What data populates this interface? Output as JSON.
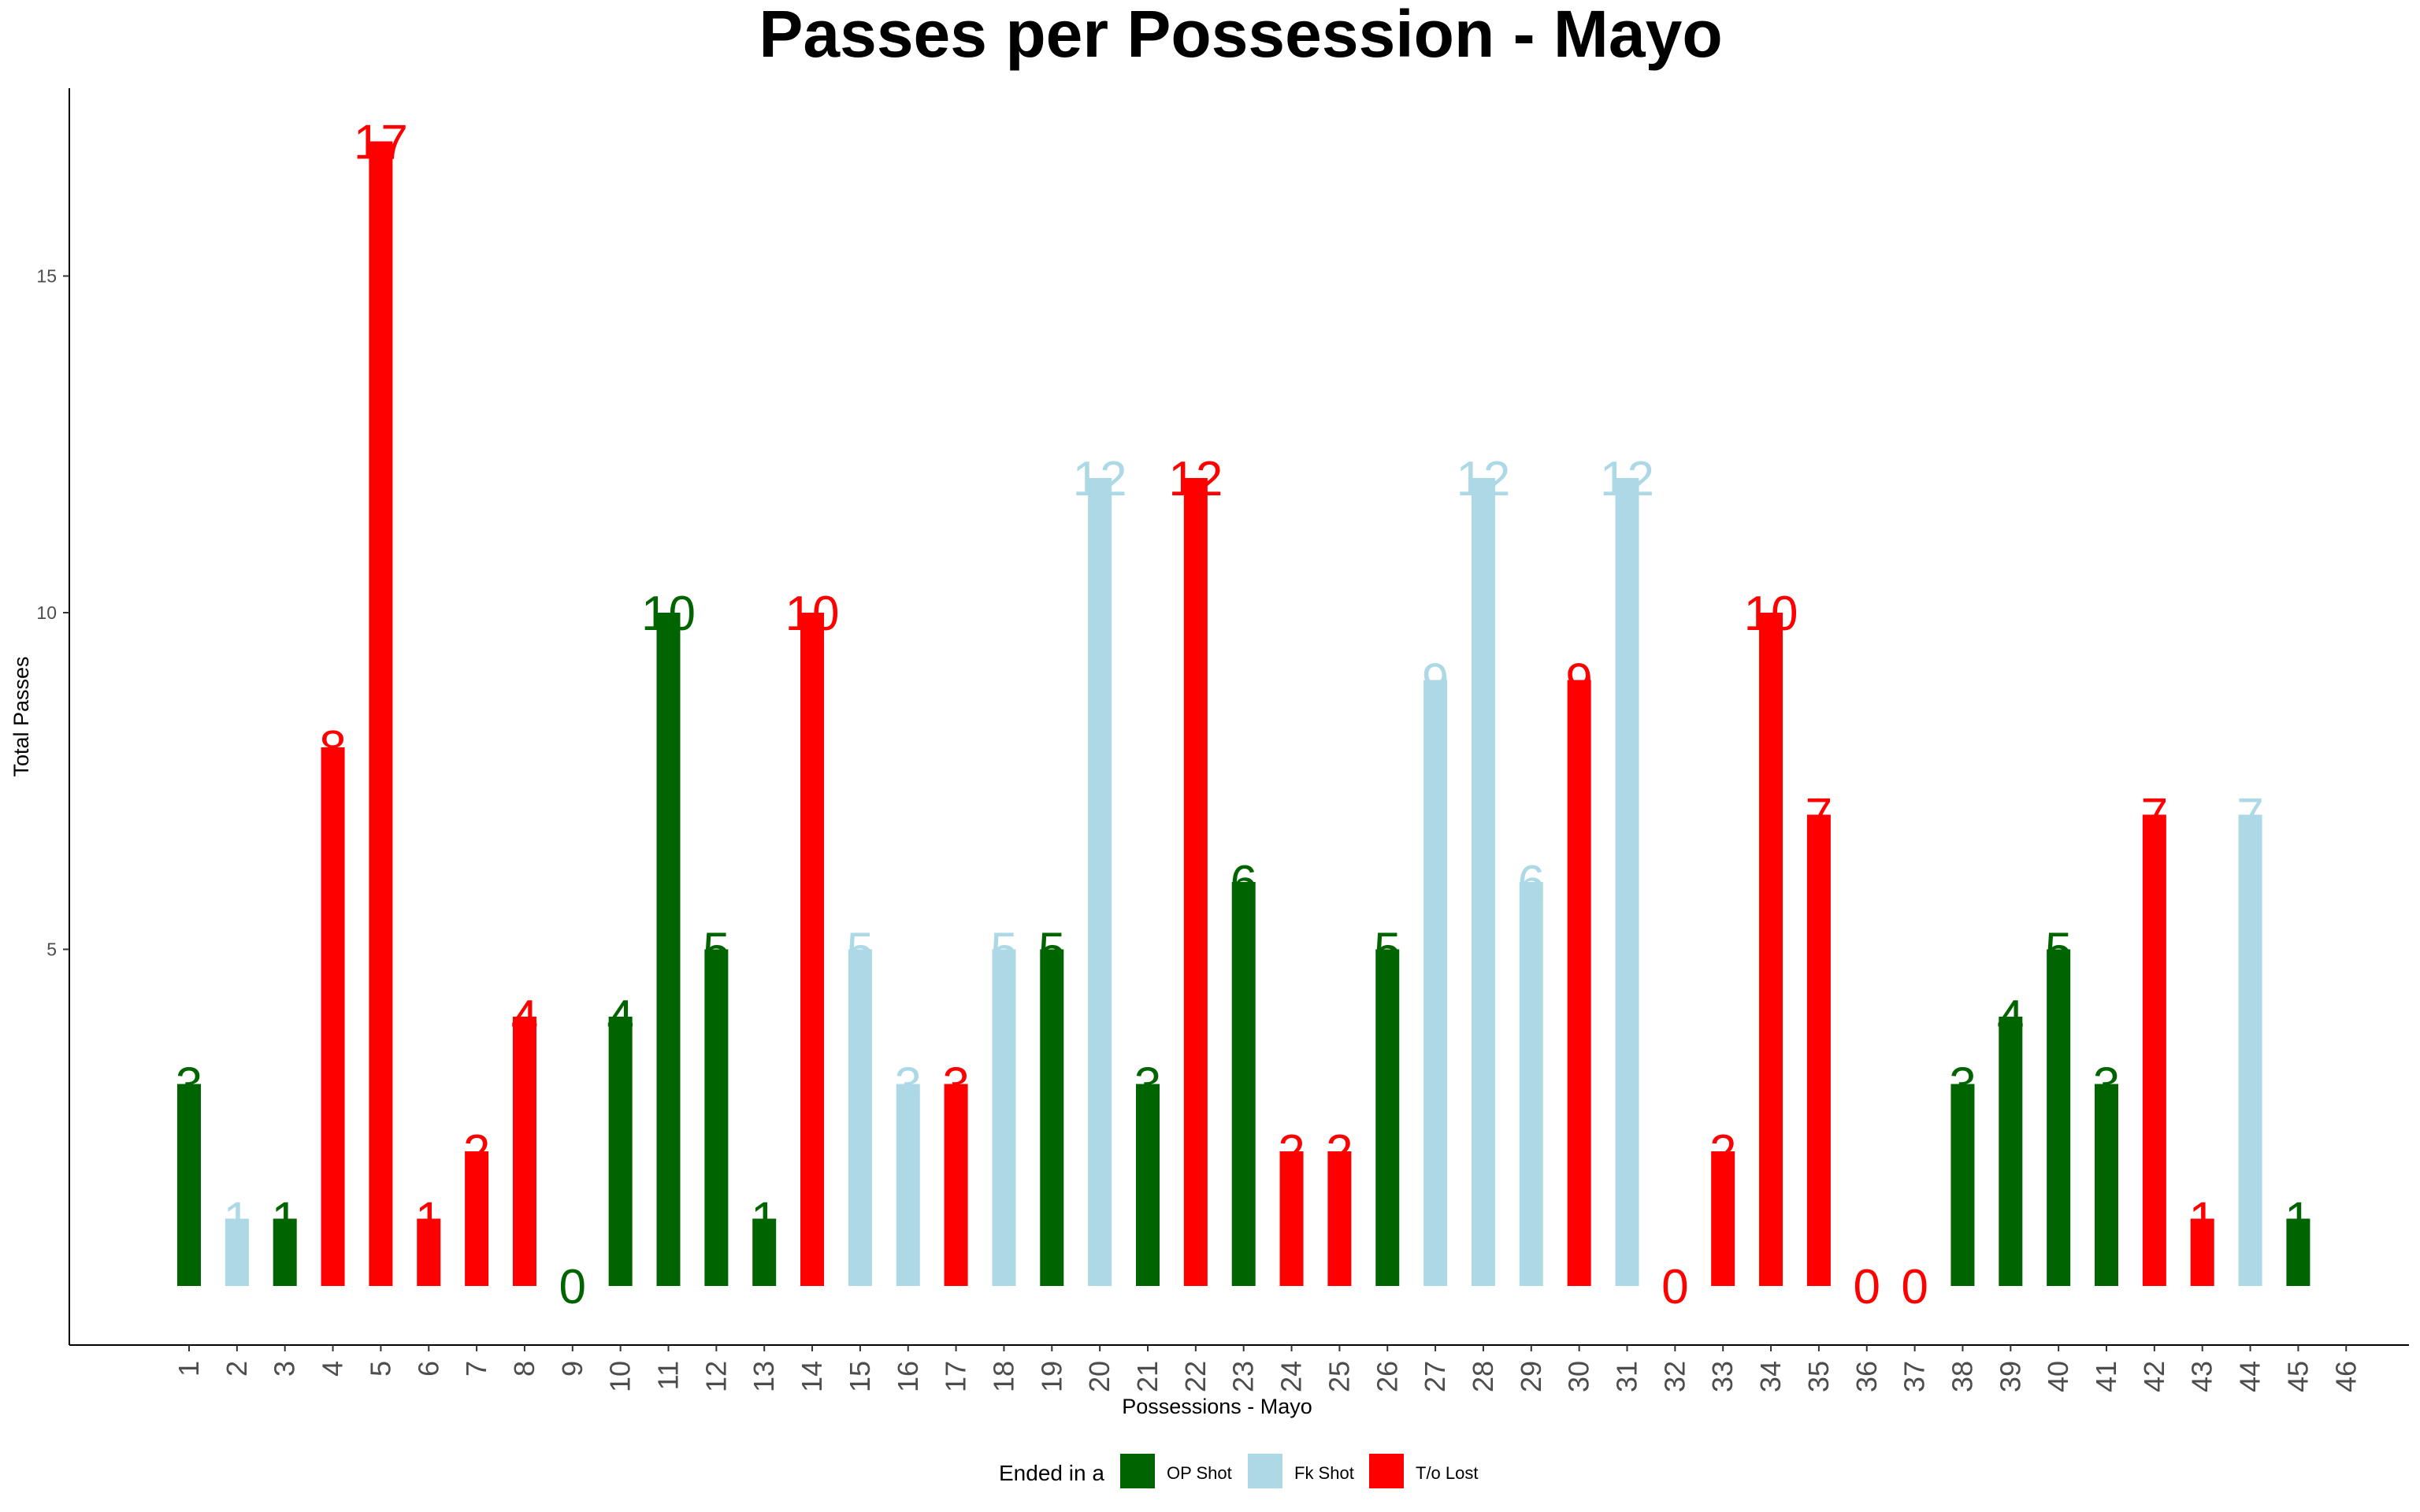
{
  "chart_data": {
    "type": "bar",
    "title": "Passes per Possession - Mayo",
    "xlabel": "Possessions - Mayo",
    "ylabel": "Total Passes",
    "ylim": [
      -1,
      17.5
    ],
    "yticks": [
      5,
      10,
      15
    ],
    "grid": false,
    "legend_position": "bottom",
    "legend": {
      "title": "Ended in a",
      "entries": [
        {
          "key": "op",
          "label": "OP Shot",
          "color": "#006400"
        },
        {
          "key": "fk",
          "label": "Fk Shot",
          "color": "#add8e6"
        },
        {
          "key": "to",
          "label": "T/o Lost",
          "color": "#ff0000"
        }
      ]
    },
    "categories": [
      "1",
      "2",
      "3",
      "4",
      "5",
      "6",
      "7",
      "8",
      "9",
      "10",
      "11",
      "12",
      "13",
      "14",
      "15",
      "16",
      "17",
      "18",
      "19",
      "20",
      "21",
      "22",
      "23",
      "24",
      "25",
      "26",
      "27",
      "28",
      "29",
      "30",
      "31",
      "32",
      "33",
      "34",
      "35",
      "36",
      "37",
      "38",
      "39",
      "40",
      "41",
      "42",
      "43",
      "44",
      "45",
      "46"
    ],
    "values": [
      3,
      1,
      1,
      8,
      17,
      1,
      2,
      4,
      0,
      4,
      10,
      5,
      1,
      10,
      5,
      3,
      3,
      5,
      5,
      12,
      3,
      12,
      6,
      2,
      2,
      5,
      9,
      12,
      6,
      9,
      12,
      0,
      2,
      10,
      7,
      0,
      0,
      3,
      4,
      5,
      3,
      7,
      1,
      7,
      1,
      null
    ],
    "outcomes": [
      "op",
      "fk",
      "op",
      "to",
      "to",
      "to",
      "to",
      "to",
      "op",
      "op",
      "op",
      "op",
      "op",
      "to",
      "fk",
      "fk",
      "to",
      "fk",
      "op",
      "fk",
      "op",
      "to",
      "op",
      "to",
      "to",
      "op",
      "fk",
      "fk",
      "fk",
      "to",
      "fk",
      "to",
      "to",
      "to",
      "to",
      "to",
      "to",
      "op",
      "op",
      "op",
      "op",
      "to",
      "to",
      "fk",
      "op",
      null
    ]
  }
}
